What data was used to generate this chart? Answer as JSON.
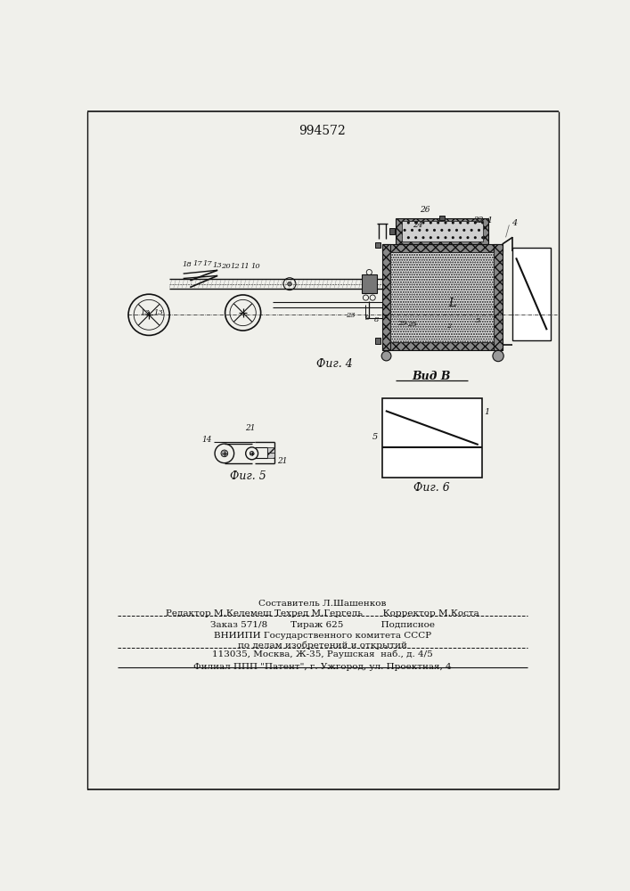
{
  "patent_number": "994572",
  "footer_line1": "Составитель Л.Шашенков",
  "footer_line2": "Редактор М.Келемеш Техред М.Гергель       Корректор М.Коста",
  "footer_line3": "Заказ 571/8        Тираж 625             Подписное",
  "footer_line4": "ВНИИПИ Государственного комитета СССР",
  "footer_line5": "по делам изобретений и открытий",
  "footer_line6": "113035, Москва, Ж-35, Раушская  наб., д. 4/5",
  "footer_line7": "Филиал ППП \"Патент\", г. Ужгород, ул. Проектная, 4",
  "bg_color": "#f0f0eb",
  "line_color": "#111111"
}
